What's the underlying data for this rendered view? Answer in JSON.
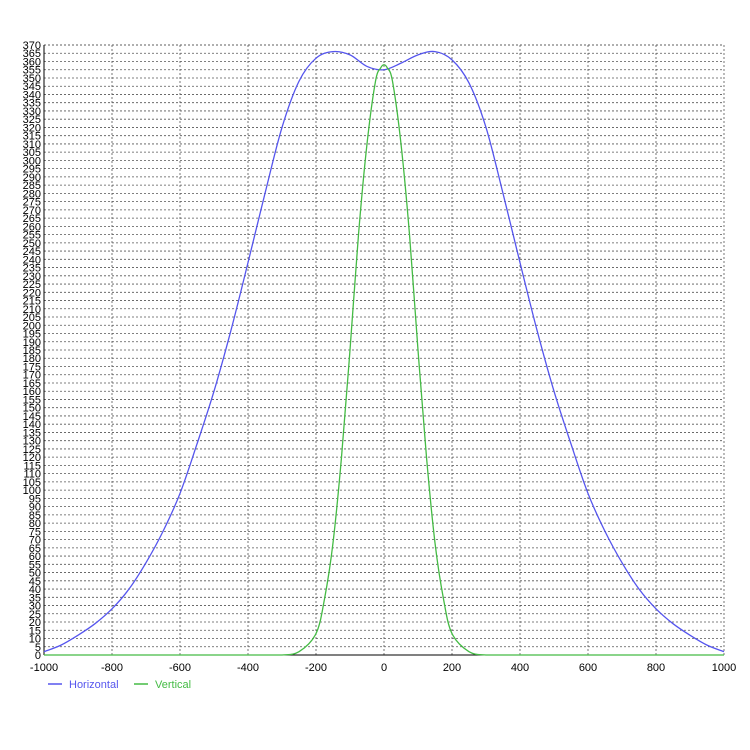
{
  "chart_data": {
    "type": "line",
    "title": "",
    "xlabel": "",
    "ylabel": "",
    "xlim": [
      -1000,
      1000
    ],
    "ylim": [
      0,
      370
    ],
    "x_ticks": [
      -1000,
      -800,
      -600,
      -400,
      -200,
      0,
      200,
      400,
      600,
      800,
      1000
    ],
    "y_ticks": [
      0,
      5,
      10,
      15,
      20,
      25,
      30,
      35,
      40,
      45,
      50,
      55,
      60,
      65,
      70,
      75,
      80,
      85,
      90,
      95,
      100,
      105,
      110,
      115,
      120,
      125,
      130,
      135,
      140,
      145,
      150,
      155,
      160,
      165,
      170,
      175,
      180,
      185,
      190,
      195,
      200,
      205,
      210,
      215,
      220,
      225,
      230,
      235,
      240,
      245,
      250,
      255,
      260,
      265,
      270,
      275,
      280,
      285,
      290,
      295,
      300,
      305,
      310,
      315,
      320,
      325,
      330,
      335,
      340,
      345,
      350,
      355,
      360,
      365,
      370
    ],
    "grid": true,
    "legend_position": "bottom-left",
    "series": [
      {
        "name": "Horizontal",
        "color": "#5555ee",
        "x": [
          -1000,
          -950,
          -900,
          -850,
          -800,
          -750,
          -700,
          -650,
          -600,
          -550,
          -500,
          -450,
          -400,
          -350,
          -300,
          -250,
          -200,
          -150,
          -100,
          -50,
          0,
          50,
          100,
          150,
          200,
          250,
          300,
          350,
          400,
          450,
          500,
          550,
          600,
          650,
          700,
          750,
          800,
          850,
          900,
          950,
          1000
        ],
        "y": [
          2,
          6,
          12,
          19,
          28,
          40,
          56,
          75,
          98,
          128,
          160,
          197,
          238,
          280,
          320,
          348,
          362,
          366,
          364,
          357,
          355,
          359,
          364,
          366,
          361,
          347,
          320,
          280,
          238,
          197,
          160,
          128,
          98,
          75,
          56,
          40,
          28,
          19,
          12,
          6,
          2
        ]
      },
      {
        "name": "Vertical",
        "color": "#44bb44",
        "x": [
          -1000,
          -400,
          -300,
          -250,
          -200,
          -175,
          -150,
          -125,
          -100,
          -75,
          -50,
          -25,
          -10,
          0,
          10,
          25,
          50,
          75,
          100,
          125,
          150,
          175,
          200,
          250,
          300,
          400,
          1000
        ],
        "y": [
          0,
          0,
          0,
          2,
          13,
          34,
          68,
          120,
          185,
          255,
          310,
          348,
          356,
          358,
          356,
          348,
          310,
          255,
          185,
          120,
          68,
          34,
          13,
          2,
          0,
          0,
          0
        ]
      }
    ]
  }
}
